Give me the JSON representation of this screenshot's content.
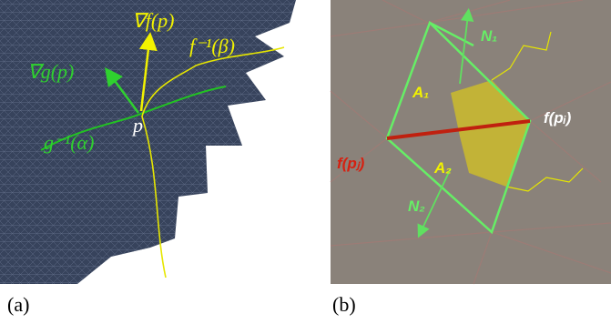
{
  "panel_a": {
    "labels": {
      "grad_f": "∇f(p)",
      "f_inverse": "f⁻¹(β)",
      "grad_g": "∇g(p)",
      "g_inverse": "g⁻¹(α)",
      "point": "p"
    },
    "caption": "(a)"
  },
  "panel_b": {
    "labels": {
      "n1": "N₁",
      "a1": "A₁",
      "f_pi": "f(pᵢ)",
      "f_pj": "f(pⱼ)",
      "a2": "A₂",
      "n2": "N₂"
    },
    "caption": "(b)"
  }
}
